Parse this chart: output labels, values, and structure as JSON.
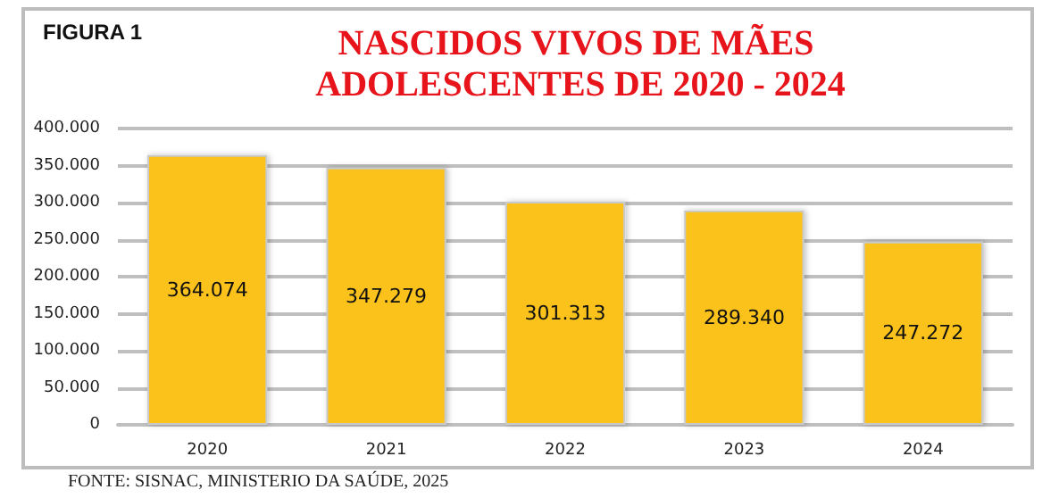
{
  "chart_data": {
    "type": "bar",
    "title": "NASCIDOS VIVOS DE MÃES ADOLESCENTES DE 2020 - 2024",
    "categories": [
      "2020",
      "2021",
      "2022",
      "2023",
      "2024"
    ],
    "values": [
      364074,
      347279,
      301313,
      289340,
      247272
    ],
    "value_labels": [
      "364.074",
      "347.279",
      "301.313",
      "289.340",
      "247.272"
    ],
    "color": "#fbc21c",
    "ylim": [
      0,
      400000
    ],
    "yticks": [
      {
        "value": 0,
        "label": "0"
      },
      {
        "value": 50000,
        "label": "50.000"
      },
      {
        "value": 100000,
        "label": "100.000"
      },
      {
        "value": 150000,
        "label": "150.000"
      },
      {
        "value": 200000,
        "label": "200.000"
      },
      {
        "value": 250000,
        "label": "250.000"
      },
      {
        "value": 300000,
        "label": "300.000"
      },
      {
        "value": 350000,
        "label": "350.000"
      },
      {
        "value": 400000,
        "label": "400.000"
      }
    ],
    "grid": "y",
    "annotations": [
      "FIGURA 1",
      "FONTE: SISNAC, MINISTERIO DA SAÚDE, 2025"
    ]
  }
}
